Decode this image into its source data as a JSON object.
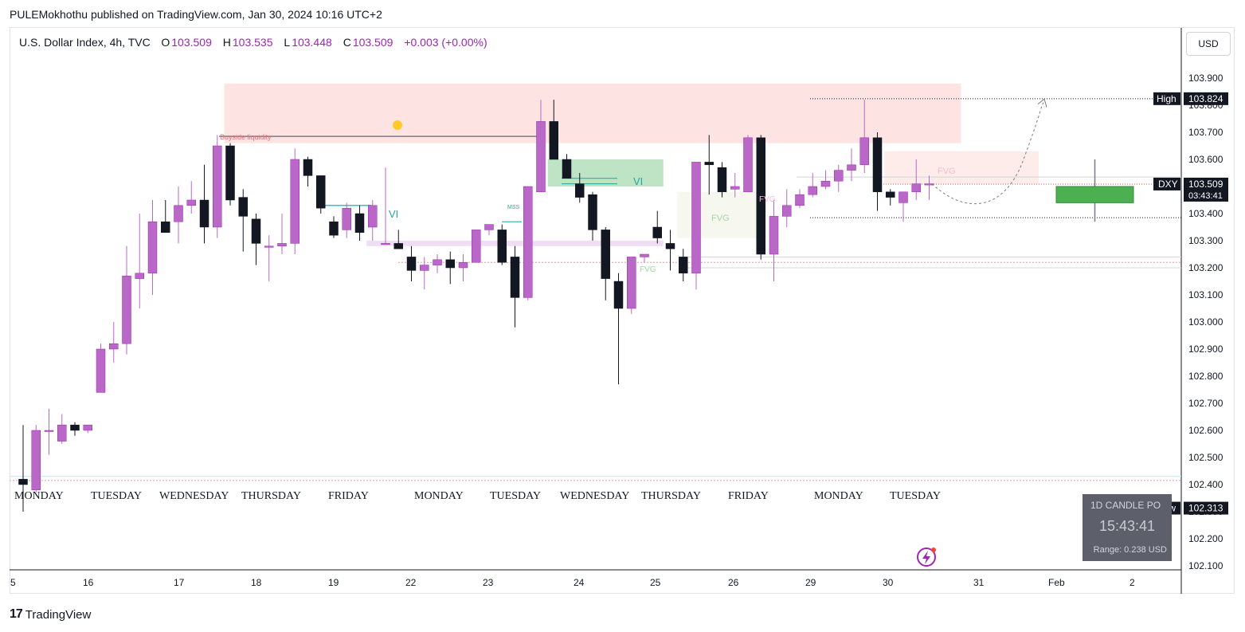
{
  "publish_line": "PULEMokhothu published on TradingView.com, Jan 30, 2024 10:16 UTC+2",
  "symbol_line": {
    "name": "U.S. Dollar Index, 4h, TVC",
    "o_label": "O",
    "o": "103.509",
    "h_label": "H",
    "h": "103.535",
    "l_label": "L",
    "l": "103.448",
    "c_label": "C",
    "c": "103.509",
    "change": "+0.003 (+0.00%)"
  },
  "currency_button": "USD",
  "brand": "TradingView",
  "colors": {
    "bull": "#ba68c8",
    "bear": "#131722",
    "accent": "#9c27b0",
    "vi": "#26a69a"
  },
  "chart_data": {
    "type": "candlestick",
    "ylim": [
      102.05,
      104.05
    ],
    "y_ticks": [
      "103.900",
      "103.800",
      "103.700",
      "103.600",
      "103.500",
      "103.400",
      "103.300",
      "103.200",
      "103.100",
      "103.000",
      "102.900",
      "102.800",
      "102.700",
      "102.600",
      "102.500",
      "102.400",
      "102.300",
      "102.200",
      "102.100"
    ],
    "x_ticks": [
      "5",
      "16",
      "17",
      "18",
      "19",
      "22",
      "23",
      "24",
      "25",
      "26",
      "29",
      "30",
      "31",
      "Feb",
      "2"
    ],
    "day_labels": [
      "MONDAY",
      "TUESDAY",
      "WEDNESDAY",
      "THURSDAY",
      "FRIDAY",
      "MONDAY",
      "TUESDAY",
      "WEDNESDAY",
      "THURSDAY",
      "FRIDAY",
      "MONDAY",
      "TUESDAY"
    ],
    "candles": [
      {
        "o": 102.42,
        "h": 102.62,
        "l": 102.3,
        "c": 102.4
      },
      {
        "o": 102.38,
        "h": 102.62,
        "l": 102.37,
        "c": 102.6
      },
      {
        "o": 102.6,
        "h": 102.68,
        "l": 102.51,
        "c": 102.6
      },
      {
        "o": 102.56,
        "h": 102.66,
        "l": 102.55,
        "c": 102.62
      },
      {
        "o": 102.62,
        "h": 102.63,
        "l": 102.58,
        "c": 102.6
      },
      {
        "o": 102.6,
        "h": 102.61,
        "l": 102.59,
        "c": 102.62
      },
      {
        "o": 102.74,
        "h": 102.92,
        "l": 102.74,
        "c": 102.9
      },
      {
        "o": 102.9,
        "h": 103.0,
        "l": 102.85,
        "c": 102.92
      },
      {
        "o": 102.92,
        "h": 103.28,
        "l": 102.88,
        "c": 103.17
      },
      {
        "o": 103.16,
        "h": 103.4,
        "l": 103.05,
        "c": 103.18
      },
      {
        "o": 103.18,
        "h": 103.45,
        "l": 103.1,
        "c": 103.37
      },
      {
        "o": 103.37,
        "h": 103.45,
        "l": 103.33,
        "c": 103.33
      },
      {
        "o": 103.37,
        "h": 103.5,
        "l": 103.29,
        "c": 103.43
      },
      {
        "o": 103.43,
        "h": 103.52,
        "l": 103.4,
        "c": 103.45
      },
      {
        "o": 103.45,
        "h": 103.58,
        "l": 103.29,
        "c": 103.35
      },
      {
        "o": 103.35,
        "h": 103.69,
        "l": 103.31,
        "c": 103.65
      },
      {
        "o": 103.65,
        "h": 103.66,
        "l": 103.43,
        "c": 103.45
      },
      {
        "o": 103.46,
        "h": 103.49,
        "l": 103.26,
        "c": 103.39
      },
      {
        "o": 103.38,
        "h": 103.4,
        "l": 103.21,
        "c": 103.29
      },
      {
        "o": 103.28,
        "h": 103.32,
        "l": 103.15,
        "c": 103.28
      },
      {
        "o": 103.28,
        "h": 103.4,
        "l": 103.25,
        "c": 103.29
      },
      {
        "o": 103.29,
        "h": 103.64,
        "l": 103.25,
        "c": 103.6
      },
      {
        "o": 103.6,
        "h": 103.61,
        "l": 103.5,
        "c": 103.54
      },
      {
        "o": 103.54,
        "h": 103.54,
        "l": 103.4,
        "c": 103.42
      },
      {
        "o": 103.37,
        "h": 103.39,
        "l": 103.31,
        "c": 103.32
      },
      {
        "o": 103.34,
        "h": 103.44,
        "l": 103.31,
        "c": 103.42
      },
      {
        "o": 103.4,
        "h": 103.43,
        "l": 103.3,
        "c": 103.33
      },
      {
        "o": 103.35,
        "h": 103.45,
        "l": 103.3,
        "c": 103.43
      },
      {
        "o": 103.29,
        "h": 103.57,
        "l": 103.29,
        "c": 103.29
      },
      {
        "o": 103.29,
        "h": 103.34,
        "l": 103.27,
        "c": 103.27
      },
      {
        "o": 103.24,
        "h": 103.28,
        "l": 103.15,
        "c": 103.19
      },
      {
        "o": 103.19,
        "h": 103.24,
        "l": 103.12,
        "c": 103.21
      },
      {
        "o": 103.21,
        "h": 103.25,
        "l": 103.18,
        "c": 103.23
      },
      {
        "o": 103.23,
        "h": 103.26,
        "l": 103.14,
        "c": 103.2
      },
      {
        "o": 103.2,
        "h": 103.25,
        "l": 103.15,
        "c": 103.22
      },
      {
        "o": 103.22,
        "h": 103.34,
        "l": 103.22,
        "c": 103.34
      },
      {
        "o": 103.34,
        "h": 103.36,
        "l": 103.32,
        "c": 103.36
      },
      {
        "o": 103.34,
        "h": 103.36,
        "l": 103.21,
        "c": 103.22
      },
      {
        "o": 103.24,
        "h": 103.28,
        "l": 102.98,
        "c": 103.09
      },
      {
        "o": 103.09,
        "h": 103.5,
        "l": 103.08,
        "c": 103.5
      },
      {
        "o": 103.48,
        "h": 103.82,
        "l": 103.48,
        "c": 103.74
      },
      {
        "o": 103.74,
        "h": 103.82,
        "l": 103.6,
        "c": 103.6
      },
      {
        "o": 103.6,
        "h": 103.62,
        "l": 103.53,
        "c": 103.53
      },
      {
        "o": 103.51,
        "h": 103.55,
        "l": 103.44,
        "c": 103.46
      },
      {
        "o": 103.47,
        "h": 103.48,
        "l": 103.3,
        "c": 103.34
      },
      {
        "o": 103.34,
        "h": 103.35,
        "l": 103.08,
        "c": 103.16
      },
      {
        "o": 103.15,
        "h": 103.18,
        "l": 102.77,
        "c": 103.05
      },
      {
        "o": 103.05,
        "h": 103.24,
        "l": 103.03,
        "c": 103.24
      },
      {
        "o": 103.24,
        "h": 103.25,
        "l": 103.22,
        "c": 103.25
      },
      {
        "o": 103.35,
        "h": 103.41,
        "l": 103.29,
        "c": 103.31
      },
      {
        "o": 103.29,
        "h": 103.34,
        "l": 103.19,
        "c": 103.27
      },
      {
        "o": 103.24,
        "h": 103.27,
        "l": 103.15,
        "c": 103.18
      },
      {
        "o": 103.18,
        "h": 103.59,
        "l": 103.12,
        "c": 103.59
      },
      {
        "o": 103.59,
        "h": 103.69,
        "l": 103.47,
        "c": 103.58
      },
      {
        "o": 103.57,
        "h": 103.59,
        "l": 103.46,
        "c": 103.48
      },
      {
        "o": 103.49,
        "h": 103.55,
        "l": 103.46,
        "c": 103.5
      },
      {
        "o": 103.48,
        "h": 103.69,
        "l": 103.48,
        "c": 103.68
      },
      {
        "o": 103.68,
        "h": 103.69,
        "l": 103.23,
        "c": 103.25
      },
      {
        "o": 103.25,
        "h": 103.45,
        "l": 103.15,
        "c": 103.39
      },
      {
        "o": 103.39,
        "h": 103.49,
        "l": 103.35,
        "c": 103.43
      },
      {
        "o": 103.43,
        "h": 103.49,
        "l": 103.42,
        "c": 103.47
      },
      {
        "o": 103.47,
        "h": 103.55,
        "l": 103.46,
        "c": 103.5
      },
      {
        "o": 103.5,
        "h": 103.56,
        "l": 103.49,
        "c": 103.52
      },
      {
        "o": 103.52,
        "h": 103.58,
        "l": 103.48,
        "c": 103.56
      },
      {
        "o": 103.56,
        "h": 103.64,
        "l": 103.52,
        "c": 103.58
      },
      {
        "o": 103.58,
        "h": 103.82,
        "l": 103.55,
        "c": 103.68
      },
      {
        "o": 103.68,
        "h": 103.7,
        "l": 103.41,
        "c": 103.48
      },
      {
        "o": 103.48,
        "h": 103.49,
        "l": 103.43,
        "c": 103.46
      },
      {
        "o": 103.44,
        "h": 103.48,
        "l": 103.37,
        "c": 103.48
      },
      {
        "o": 103.48,
        "h": 103.6,
        "l": 103.45,
        "c": 103.51
      },
      {
        "o": 103.51,
        "h": 103.54,
        "l": 103.45,
        "c": 103.51
      }
    ],
    "zones": [
      {
        "name": "premium-zone",
        "y1": 103.66,
        "y2": 103.88,
        "c1": 16,
        "c2": 72,
        "fill": "#fde4e2"
      },
      {
        "name": "volume-imbalance-zone",
        "y1": 103.5,
        "y2": 103.6,
        "c1": 41,
        "c2": 49,
        "fill": "#bfe4c5"
      },
      {
        "name": "fvg-friday-zone",
        "y1": 103.31,
        "y2": 103.48,
        "c1": 51,
        "c2": 57,
        "fill": "#f6f8f0"
      },
      {
        "name": "fvg-monday-zone",
        "y1": 103.51,
        "y2": 103.63,
        "c1": 67,
        "c2": 78,
        "fill": "#fdecea"
      },
      {
        "name": "range-zone",
        "y1": 103.28,
        "y2": 103.3,
        "c1": 27,
        "c2": 49,
        "fill": "#efdcf5"
      }
    ],
    "projection_box": {
      "y1": 103.44,
      "y2": 103.5,
      "x1": 1326,
      "x2": 1423,
      "wick_high": 103.6,
      "wick_low": 103.37
    },
    "annotations": {
      "buyside_liquidity": "Buyside liquidity",
      "vi_1": "VI",
      "vi_2": "VI",
      "mss": "MSS",
      "fvg_1": "FVG",
      "fvg_2": "FVG",
      "fvg_3": "FVG",
      "fvg_4": "FVG"
    },
    "price_labels": {
      "high_label": "High",
      "high_value": "103.824",
      "dxy_label": "DXY",
      "dxy_value": "103.509",
      "dxy_countdown": "03:43:41",
      "low_label": "Low",
      "low_value": "102.313"
    }
  },
  "candle_panel": {
    "title": "1D CANDLE PO",
    "countdown": "15:43:41",
    "range": "Range: 0.238 USD"
  }
}
